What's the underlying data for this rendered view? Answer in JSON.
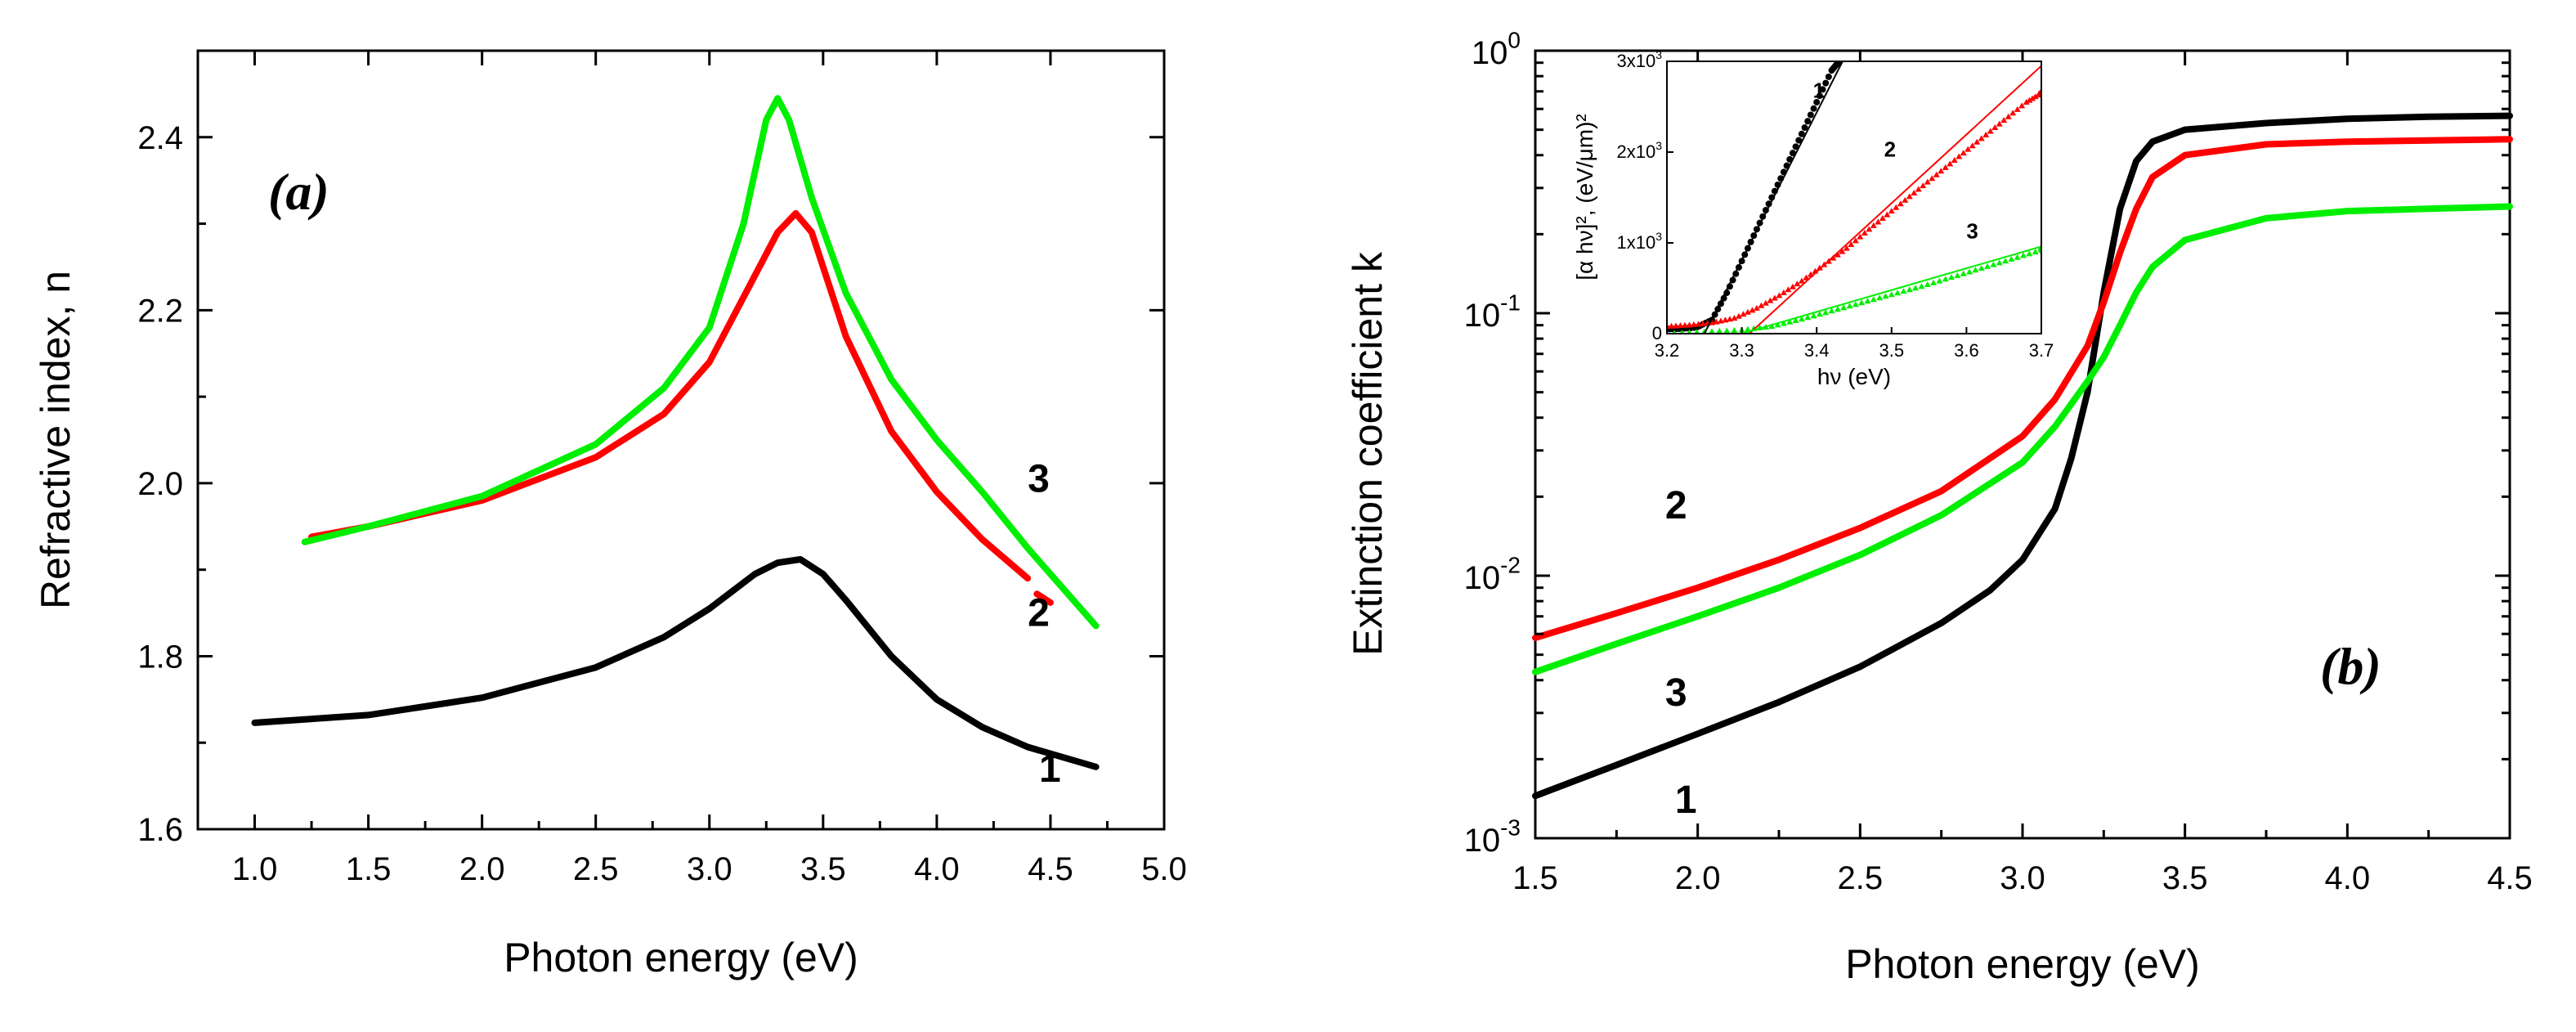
{
  "chart_data": [
    {
      "id": "a",
      "type": "line",
      "panel_label": "(a)",
      "xlabel": "Photon energy (eV)",
      "ylabel": "Refractive index, n",
      "xlim": [
        0.75,
        5.0
      ],
      "ylim": [
        1.6,
        2.5
      ],
      "xticks": [
        1.0,
        1.5,
        2.0,
        2.5,
        3.0,
        3.5,
        4.0,
        4.5,
        5.0
      ],
      "xtick_labels": [
        "1.0",
        "1.5",
        "2.0",
        "2.5",
        "3.0",
        "3.5",
        "4.0",
        "4.5",
        "5.0"
      ],
      "yticks": [
        1.6,
        1.8,
        2.0,
        2.2,
        2.4
      ],
      "ytick_labels": [
        "1.6",
        "1.8",
        "2.0",
        "2.2",
        "2.4"
      ],
      "series": [
        {
          "label": "1",
          "color": "#000000",
          "points": [
            [
              1.0,
              1.723
            ],
            [
              1.5,
              1.732
            ],
            [
              2.0,
              1.752
            ],
            [
              2.5,
              1.787
            ],
            [
              2.8,
              1.822
            ],
            [
              3.0,
              1.855
            ],
            [
              3.2,
              1.895
            ],
            [
              3.3,
              1.908
            ],
            [
              3.4,
              1.912
            ],
            [
              3.5,
              1.895
            ],
            [
              3.6,
              1.865
            ],
            [
              3.8,
              1.8
            ],
            [
              4.0,
              1.75
            ],
            [
              4.2,
              1.718
            ],
            [
              4.4,
              1.695
            ],
            [
              4.7,
              1.672
            ]
          ]
        },
        {
          "label": "2",
          "color": "#ff0000",
          "points": [
            [
              1.25,
              1.938
            ],
            [
              1.5,
              1.95
            ],
            [
              2.0,
              1.98
            ],
            [
              2.5,
              2.03
            ],
            [
              2.8,
              2.08
            ],
            [
              3.0,
              2.14
            ],
            [
              3.2,
              2.24
            ],
            [
              3.3,
              2.29
            ],
            [
              3.38,
              2.312
            ],
            [
              3.45,
              2.29
            ],
            [
              3.5,
              2.25
            ],
            [
              3.6,
              2.17
            ],
            [
              3.8,
              2.06
            ],
            [
              4.0,
              1.99
            ],
            [
              4.2,
              1.935
            ],
            [
              4.4,
              1.89
            ]
          ]
        },
        {
          "label": "2",
          "color": "#ff0000",
          "points": [
            [
              4.44,
              1.872
            ],
            [
              4.5,
              1.862
            ]
          ]
        },
        {
          "label": "3",
          "color": "#00ee00",
          "points": [
            [
              1.22,
              1.932
            ],
            [
              1.5,
              1.95
            ],
            [
              2.0,
              1.985
            ],
            [
              2.5,
              2.045
            ],
            [
              2.8,
              2.11
            ],
            [
              3.0,
              2.18
            ],
            [
              3.15,
              2.3
            ],
            [
              3.25,
              2.42
            ],
            [
              3.3,
              2.445
            ],
            [
              3.35,
              2.42
            ],
            [
              3.45,
              2.33
            ],
            [
              3.6,
              2.22
            ],
            [
              3.8,
              2.12
            ],
            [
              4.0,
              2.05
            ],
            [
              4.2,
              1.99
            ],
            [
              4.4,
              1.925
            ],
            [
              4.7,
              1.835
            ]
          ]
        }
      ],
      "curve_labels": [
        {
          "text": "1",
          "x": 4.45,
          "y": 1.655
        },
        {
          "text": "2",
          "x": 4.4,
          "y": 1.835
        },
        {
          "text": "3",
          "x": 4.4,
          "y": 1.99
        }
      ]
    },
    {
      "id": "b",
      "type": "line",
      "yscale": "log",
      "panel_label": "(b)",
      "xlabel": "Photon energy (eV)",
      "ylabel": "Extinction coefficient  k",
      "xlim": [
        1.5,
        4.5
      ],
      "ylim": [
        0.001,
        1.0
      ],
      "xticks": [
        1.5,
        2.0,
        2.5,
        3.0,
        3.5,
        4.0,
        4.5
      ],
      "xtick_labels": [
        "1.5",
        "2.0",
        "2.5",
        "3.0",
        "3.5",
        "4.0",
        "4.5"
      ],
      "yticks": [
        0.001,
        0.01,
        0.1,
        1.0
      ],
      "ytick_labels": [
        {
          "base": "10",
          "exp": "-3"
        },
        {
          "base": "10",
          "exp": "-2"
        },
        {
          "base": "10",
          "exp": "-1"
        },
        {
          "base": "10",
          "exp": "0"
        }
      ],
      "series": [
        {
          "label": "1",
          "color": "#000000",
          "points": [
            [
              1.5,
              0.00145
            ],
            [
              1.75,
              0.0019
            ],
            [
              2.0,
              0.0025
            ],
            [
              2.25,
              0.0033
            ],
            [
              2.5,
              0.0045
            ],
            [
              2.75,
              0.0066
            ],
            [
              2.9,
              0.0088
            ],
            [
              3.0,
              0.0115
            ],
            [
              3.1,
              0.018
            ],
            [
              3.15,
              0.028
            ],
            [
              3.2,
              0.05
            ],
            [
              3.25,
              0.12
            ],
            [
              3.3,
              0.25
            ],
            [
              3.35,
              0.38
            ],
            [
              3.4,
              0.45
            ],
            [
              3.5,
              0.5
            ],
            [
              3.75,
              0.53
            ],
            [
              4.0,
              0.55
            ],
            [
              4.25,
              0.56
            ],
            [
              4.5,
              0.565
            ]
          ]
        },
        {
          "label": "2",
          "color": "#ff0000",
          "points": [
            [
              1.5,
              0.0058
            ],
            [
              1.75,
              0.0072
            ],
            [
              2.0,
              0.009
            ],
            [
              2.25,
              0.0115
            ],
            [
              2.5,
              0.0152
            ],
            [
              2.75,
              0.021
            ],
            [
              3.0,
              0.034
            ],
            [
              3.1,
              0.047
            ],
            [
              3.2,
              0.075
            ],
            [
              3.25,
              0.11
            ],
            [
              3.3,
              0.17
            ],
            [
              3.35,
              0.25
            ],
            [
              3.4,
              0.33
            ],
            [
              3.5,
              0.4
            ],
            [
              3.75,
              0.44
            ],
            [
              4.0,
              0.45
            ],
            [
              4.25,
              0.455
            ],
            [
              4.5,
              0.46
            ]
          ]
        },
        {
          "label": "3",
          "color": "#00ee00",
          "points": [
            [
              1.5,
              0.0043
            ],
            [
              1.75,
              0.0055
            ],
            [
              2.0,
              0.007
            ],
            [
              2.25,
              0.009
            ],
            [
              2.5,
              0.012
            ],
            [
              2.75,
              0.017
            ],
            [
              3.0,
              0.027
            ],
            [
              3.1,
              0.037
            ],
            [
              3.2,
              0.055
            ],
            [
              3.25,
              0.068
            ],
            [
              3.3,
              0.09
            ],
            [
              3.35,
              0.12
            ],
            [
              3.4,
              0.15
            ],
            [
              3.5,
              0.19
            ],
            [
              3.75,
              0.23
            ],
            [
              4.0,
              0.245
            ],
            [
              4.25,
              0.25
            ],
            [
              4.5,
              0.255
            ]
          ]
        }
      ],
      "curve_labels": [
        {
          "text": "2",
          "x": 1.9,
          "y": 0.0165
        },
        {
          "text": "3",
          "x": 1.9,
          "y": 0.0032
        },
        {
          "text": "1",
          "x": 1.93,
          "y": 0.00125
        }
      ],
      "inset": {
        "type": "scatter",
        "xlabel": "hν (eV)",
        "ylabel": "[α hν]², (eV/μm)²",
        "xlim": [
          3.2,
          3.7
        ],
        "ylim": [
          0,
          3000
        ],
        "xticks": [
          3.2,
          3.3,
          3.4,
          3.5,
          3.6,
          3.7
        ],
        "xtick_labels": [
          "3.2",
          "3.3",
          "3.4",
          "3.5",
          "3.6",
          "3.7"
        ],
        "yticks": [
          0,
          1000,
          2000,
          3000
        ],
        "ytick_labels": [
          {
            "base": "0",
            "exp": ""
          },
          {
            "base": "1x10",
            "exp": "3"
          },
          {
            "base": "2x10",
            "exp": "3"
          },
          {
            "base": "3x10",
            "exp": "3"
          }
        ],
        "series": [
          {
            "label": "1",
            "color": "#000000",
            "marker": "dot",
            "points": [
              [
                3.2,
                50
              ],
              [
                3.22,
                55
              ],
              [
                3.24,
                70
              ],
              [
                3.26,
                150
              ],
              [
                3.28,
                450
              ],
              [
                3.3,
                800
              ],
              [
                3.32,
                1150
              ],
              [
                3.34,
                1500
              ],
              [
                3.36,
                1850
              ],
              [
                3.38,
                2200
              ],
              [
                3.4,
                2550
              ],
              [
                3.42,
                2900
              ],
              [
                3.43,
                3000
              ]
            ]
          },
          {
            "label": "2",
            "color": "#ff0000",
            "marker": "tri",
            "points": [
              [
                3.2,
                80
              ],
              [
                3.23,
                95
              ],
              [
                3.26,
                120
              ],
              [
                3.29,
                170
              ],
              [
                3.32,
                280
              ],
              [
                3.35,
                420
              ],
              [
                3.38,
                580
              ],
              [
                3.41,
                760
              ],
              [
                3.44,
                940
              ],
              [
                3.47,
                1150
              ],
              [
                3.5,
                1350
              ],
              [
                3.53,
                1550
              ],
              [
                3.56,
                1750
              ],
              [
                3.59,
                1950
              ],
              [
                3.62,
                2150
              ],
              [
                3.65,
                2350
              ],
              [
                3.68,
                2550
              ],
              [
                3.7,
                2650
              ]
            ]
          },
          {
            "label": "3",
            "color": "#00ee00",
            "marker": "tri",
            "points": [
              [
                3.2,
                0
              ],
              [
                3.25,
                20
              ],
              [
                3.3,
                40
              ],
              [
                3.34,
                80
              ],
              [
                3.38,
                160
              ],
              [
                3.42,
                250
              ],
              [
                3.46,
                340
              ],
              [
                3.5,
                430
              ],
              [
                3.54,
                520
              ],
              [
                3.58,
                620
              ],
              [
                3.62,
                720
              ],
              [
                3.66,
                820
              ],
              [
                3.7,
                920
              ]
            ]
          }
        ],
        "fit_lines": [
          {
            "color": "#000000",
            "x0": 3.25,
            "x1": 3.45
          },
          {
            "color": "#ff0000",
            "x0": 3.31,
            "x1": 3.7
          },
          {
            "color": "#00ee00",
            "x0": 3.3,
            "x1": 3.7
          }
        ],
        "fit_line_values": [
          {
            "series": "1",
            "y0": 0,
            "y1": 3250
          },
          {
            "series": "2",
            "y0": 0,
            "y1": 2950
          },
          {
            "series": "3",
            "y0": 0,
            "y1": 960
          }
        ],
        "curve_labels": [
          {
            "text": "1",
            "x": 3.395,
            "y": 2600
          },
          {
            "text": "2",
            "x": 3.49,
            "y": 1950
          },
          {
            "text": "3",
            "x": 3.6,
            "y": 1050
          }
        ]
      }
    }
  ]
}
